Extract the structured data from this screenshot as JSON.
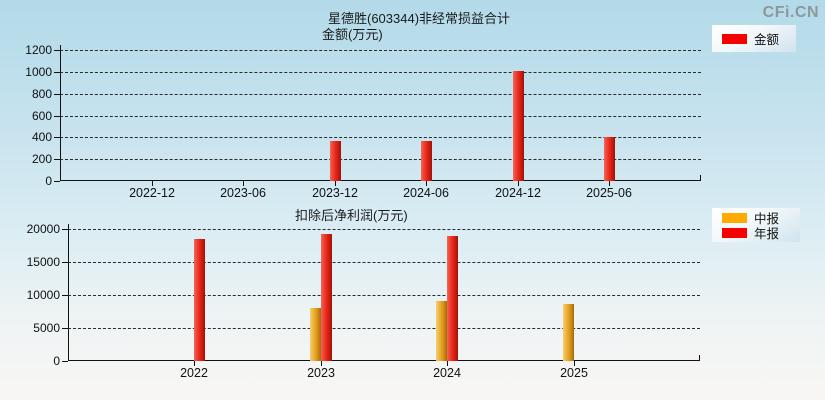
{
  "page": {
    "logo": "CFi.CN",
    "title": "星德胜(603344)非经常损益合计"
  },
  "chart_data": [
    {
      "type": "bar",
      "title": "金额(万元)",
      "legend": [
        {
          "name": "金额",
          "color": "#f60000"
        }
      ],
      "legend_position": "top-right",
      "grid": true,
      "categories": [
        "2022-12",
        "2023-06",
        "2023-12",
        "2024-06",
        "2024-12",
        "2025-06"
      ],
      "series": [
        {
          "name": "金额",
          "color": "red",
          "values": [
            null,
            null,
            370,
            365,
            1010,
            400
          ]
        }
      ],
      "ylim": [
        0,
        1200
      ],
      "yticks": [
        0,
        200,
        400,
        600,
        800,
        1000,
        1200
      ]
    },
    {
      "type": "bar",
      "title": "扣除后净利润(万元)",
      "legend": [
        {
          "name": "中报",
          "color": "#ffaa00"
        },
        {
          "name": "年报",
          "color": "#f60000"
        }
      ],
      "legend_position": "top-right",
      "grid": true,
      "categories": [
        "2022",
        "2023",
        "2024",
        "2025"
      ],
      "series": [
        {
          "name": "中报",
          "color": "yellow",
          "values": [
            null,
            8050,
            9150,
            8650
          ]
        },
        {
          "name": "年报",
          "color": "red",
          "values": [
            18500,
            19300,
            18900,
            null
          ]
        }
      ],
      "ylim": [
        0,
        20000
      ],
      "yticks": [
        0,
        5000,
        10000,
        15000,
        20000
      ]
    }
  ]
}
